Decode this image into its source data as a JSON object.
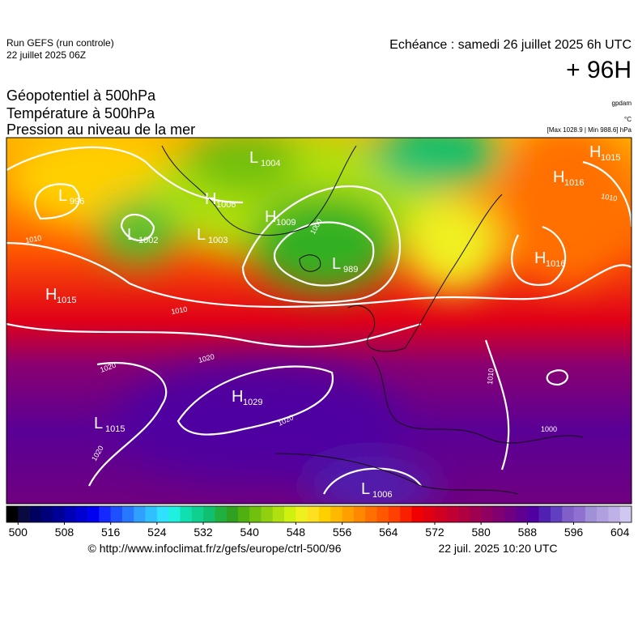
{
  "header": {
    "run": "Run GEFS (run controle)",
    "run_date": "22 juillet 2025 06Z",
    "valid_time": "Echéance : samedi 26 juillet 2025 6h UTC",
    "lead_time": "+ 96H",
    "titles": [
      "Géopotentiel à 500hPa",
      "Température à 500hPa",
      "Pression au niveau de la mer"
    ],
    "units": [
      "gpdam",
      "°C",
      "[Max 1028.9 | Min 988.6] hPa"
    ]
  },
  "pressure_centers": [
    {
      "letter": "L",
      "value": 996
    },
    {
      "letter": "L",
      "value": 1002
    },
    {
      "letter": "H",
      "value": 1006
    },
    {
      "letter": "L",
      "value": 1004
    },
    {
      "letter": "L",
      "value": 1003
    },
    {
      "letter": "H",
      "value": 1009
    },
    {
      "letter": "L",
      "value": 989
    },
    {
      "letter": "H",
      "value": 1016
    },
    {
      "letter": "H",
      "value": 1015
    },
    {
      "letter": "H",
      "value": 1016
    },
    {
      "letter": "H",
      "value": 1015
    },
    {
      "letter": "H",
      "value": 1029
    },
    {
      "letter": "L",
      "value": 1015
    },
    {
      "letter": "L",
      "value": 1006
    }
  ],
  "isobar_labels": [
    1010,
    1010,
    1020,
    1020,
    1020,
    1020,
    1000,
    1010,
    1010,
    1000
  ],
  "colorbar": {
    "range": [
      498,
      606
    ],
    "ticks": [
      500,
      508,
      516,
      524,
      532,
      540,
      548,
      556,
      564,
      572,
      580,
      588,
      596,
      604
    ],
    "colors": [
      "#000000",
      "#0a0a40",
      "#000060",
      "#00007a",
      "#000096",
      "#0000b4",
      "#0000d2",
      "#0000f0",
      "#1428ff",
      "#1e50ff",
      "#2878ff",
      "#30a0ff",
      "#30c0ff",
      "#30e0ff",
      "#20f0e0",
      "#10e0b0",
      "#10d090",
      "#10c070",
      "#20b040",
      "#30a020",
      "#50b010",
      "#70c010",
      "#90d010",
      "#b0e010",
      "#d0f010",
      "#f0f020",
      "#ffe020",
      "#ffd000",
      "#ffb800",
      "#ffa000",
      "#ff8800",
      "#ff7000",
      "#ff5800",
      "#ff4000",
      "#f82000",
      "#f00000",
      "#e00010",
      "#d00020",
      "#c00030",
      "#b00040",
      "#a00050",
      "#900060",
      "#800070",
      "#700080",
      "#600090",
      "#5000a0",
      "#5020b0",
      "#6040c0",
      "#8060c8",
      "#9070d0",
      "#a090d8",
      "#b0a0e0",
      "#c0b0e8",
      "#d0c8f0"
    ]
  },
  "footer": {
    "source": "© http://www.infoclimat.fr/z/gefs/europe/ctrl-500/96",
    "generated": "22 juil. 2025 10:20 UTC"
  }
}
